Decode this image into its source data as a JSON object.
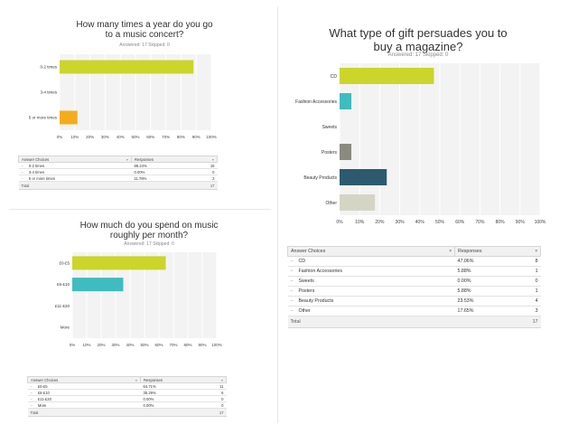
{
  "chart_data": [
    {
      "type": "bar",
      "orientation": "horizontal",
      "title": "How many times a year do you go to a music concert?",
      "subtitle": "Answered: 17    Skipped: 0",
      "categories": [
        "0-2 times",
        "3-4 times",
        "5 or more times"
      ],
      "values": [
        88.24,
        0,
        11.76
      ],
      "colors": [
        "#cbd52a",
        "#3fbcbf",
        "#f4ac1d"
      ],
      "xticks": [
        "0%",
        "10%",
        "20%",
        "30%",
        "40%",
        "50%",
        "60%",
        "70%",
        "80%",
        "90%",
        "100%"
      ],
      "xlim": [
        0,
        100
      ],
      "grid": true,
      "table": {
        "headers": [
          "Answer Choices",
          "Responses"
        ],
        "rows": [
          {
            "label": "0-2 times",
            "pct": "88.24%",
            "count": "15"
          },
          {
            "label": "3-4 times",
            "pct": "0.00%",
            "count": "0"
          },
          {
            "label": "5 or more times",
            "pct": "11.76%",
            "count": "2"
          }
        ],
        "total_label": "Total",
        "total": "17"
      }
    },
    {
      "type": "bar",
      "orientation": "horizontal",
      "title": "How much do you spend on music roughly per month?",
      "subtitle": "Answered: 17    Skipped: 0",
      "categories": [
        "£0-£5",
        "£6-£10",
        "£11-£20",
        "More"
      ],
      "values": [
        64.71,
        35.29,
        0,
        0
      ],
      "colors": [
        "#cbd52a",
        "#3fbcbf",
        "#f4ac1d",
        "#8a8a80"
      ],
      "xticks": [
        "0%",
        "10%",
        "20%",
        "30%",
        "40%",
        "50%",
        "60%",
        "70%",
        "80%",
        "90%",
        "100%"
      ],
      "xlim": [
        0,
        100
      ],
      "grid": true,
      "table": {
        "headers": [
          "Answer Choices",
          "Responses"
        ],
        "rows": [
          {
            "label": "£0-£5",
            "pct": "64.71%",
            "count": "11"
          },
          {
            "label": "£6-£10",
            "pct": "35.29%",
            "count": "6"
          },
          {
            "label": "£11-£20",
            "pct": "0.00%",
            "count": "0"
          },
          {
            "label": "More",
            "pct": "0.00%",
            "count": "0"
          }
        ],
        "total_label": "Total",
        "total": "17"
      }
    },
    {
      "type": "bar",
      "orientation": "horizontal",
      "title": "What type of gift persuades you to buy a magazine?",
      "subtitle": "Answered: 17    Skipped: 0",
      "categories": [
        "CD",
        "Fashion Accessories",
        "Sweets",
        "Posters",
        "Beauty Products",
        "Other"
      ],
      "values": [
        47.06,
        5.88,
        0,
        5.88,
        23.53,
        17.65
      ],
      "colors": [
        "#cbd52a",
        "#3fbcbf",
        "#f4ac1d",
        "#8a8a80",
        "#2d5a6e",
        "#d5d5c6"
      ],
      "xticks": [
        "0%",
        "10%",
        "20%",
        "30%",
        "40%",
        "50%",
        "60%",
        "70%",
        "80%",
        "90%",
        "100%"
      ],
      "xlim": [
        0,
        100
      ],
      "grid": true,
      "table": {
        "headers": [
          "Answer Choices",
          "Responses"
        ],
        "rows": [
          {
            "label": "CD",
            "pct": "47.06%",
            "count": "8"
          },
          {
            "label": "Fashion Accessories",
            "pct": "5.88%",
            "count": "1"
          },
          {
            "label": "Sweets",
            "pct": "0.00%",
            "count": "0"
          },
          {
            "label": "Posters",
            "pct": "5.88%",
            "count": "1"
          },
          {
            "label": "Beauty Products",
            "pct": "23.53%",
            "count": "4"
          },
          {
            "label": "Other",
            "pct": "17.65%",
            "count": "3"
          }
        ],
        "total_label": "Total",
        "total": "17"
      }
    }
  ]
}
